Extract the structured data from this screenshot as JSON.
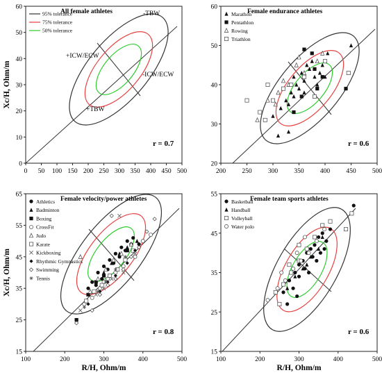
{
  "chart_data": [
    {
      "type": "scatter",
      "title": "All female athletes",
      "xlim": [
        0,
        500
      ],
      "ylim": [
        0,
        60
      ],
      "xticks": [
        "0",
        "50",
        "100",
        "150",
        "200",
        "250",
        "300",
        "350",
        "400",
        "450",
        "500"
      ],
      "yticks": [
        "0",
        "10",
        "20",
        "30",
        "40",
        "50",
        "60"
      ],
      "ylabel": "Xc/H, Ohm/m",
      "xlabel": "",
      "r_text": "r = 0.7",
      "ellipse_center": [
        305,
        39
      ],
      "legend": [
        {
          "label": "95% tolerance",
          "color": "#333333"
        },
        {
          "label": "75% tolerance",
          "color": "#e84040"
        },
        {
          "label": "50% tolerance",
          "color": "#2ecc2e"
        }
      ],
      "vector_labels": [
        "-TBW",
        "+ICW/ECW",
        "-ICW/ECW",
        "+TBW"
      ],
      "series": []
    },
    {
      "type": "scatter",
      "title": "Female endurance athletes",
      "xlim": [
        200,
        500
      ],
      "ylim": [
        20,
        60
      ],
      "xticks": [
        "200",
        "250",
        "300",
        "350",
        "400",
        "450",
        "500"
      ],
      "yticks": [
        "20",
        "30",
        "40",
        "50",
        "60"
      ],
      "xlabel": "",
      "ylabel": "",
      "r_text": "r = 0.6",
      "ellipse_center": [
        350,
        40
      ],
      "series": [
        {
          "name": "Marathon",
          "marker": "triangle-filled",
          "points": [
            [
              300,
              32
            ],
            [
              310,
              27
            ],
            [
              325,
              36
            ],
            [
              330,
              35
            ],
            [
              335,
              38
            ],
            [
              340,
              37
            ],
            [
              345,
              40
            ],
            [
              350,
              39
            ],
            [
              355,
              43
            ],
            [
              360,
              41
            ],
            [
              365,
              45
            ],
            [
              370,
              44
            ],
            [
              375,
              46
            ],
            [
              380,
              42
            ],
            [
              385,
              40
            ],
            [
              390,
              43
            ],
            [
              395,
              45
            ],
            [
              400,
              42
            ],
            [
              405,
              48
            ],
            [
              450,
              50
            ],
            [
              340,
              42
            ],
            [
              315,
              34
            ],
            [
              360,
              38
            ],
            [
              330,
              28
            ]
          ]
        },
        {
          "name": "Pentathlon",
          "marker": "square-filled",
          "points": [
            [
              360,
              49
            ],
            [
              375,
              48
            ],
            [
              380,
              44
            ],
            [
              395,
              42
            ],
            [
              440,
              39
            ],
            [
              340,
              33
            ],
            [
              355,
              37
            ],
            [
              385,
              39
            ]
          ]
        },
        {
          "name": "Rowing",
          "marker": "triangle-open",
          "points": [
            [
              270,
              31
            ],
            [
              290,
              36
            ],
            [
              310,
              38
            ],
            [
              320,
              41
            ],
            [
              330,
              40
            ],
            [
              345,
              45
            ],
            [
              350,
              47
            ],
            [
              360,
              43
            ],
            [
              385,
              46
            ],
            [
              395,
              48
            ],
            [
              305,
              35
            ]
          ]
        },
        {
          "name": "Triathlon",
          "marker": "square-open",
          "points": [
            [
              250,
              36
            ],
            [
              275,
              33
            ],
            [
              285,
              31
            ],
            [
              300,
              36
            ],
            [
              320,
              39
            ],
            [
              335,
              40
            ],
            [
              360,
              42
            ],
            [
              380,
              37
            ],
            [
              400,
              46
            ],
            [
              445,
              43
            ],
            [
              290,
              40
            ]
          ]
        }
      ]
    },
    {
      "type": "scatter",
      "title": "Female velocity/power athletes",
      "xlim": [
        100,
        500
      ],
      "ylim": [
        15,
        65
      ],
      "xticks": [
        "100",
        "200",
        "300",
        "400",
        "500"
      ],
      "yticks": [
        "15",
        "25",
        "35",
        "45",
        "55",
        "65"
      ],
      "xlabel": "R/H, Ohm/m",
      "ylabel": "Xc/H, Ohm/m",
      "r_text": "r = 0.8",
      "ellipse_center": [
        315,
        39
      ],
      "series": [
        {
          "name": "Athletics",
          "marker": "circle-filled",
          "points": [
            [
              260,
              35
            ],
            [
              270,
              37
            ],
            [
              285,
              40
            ],
            [
              300,
              42
            ],
            [
              315,
              44
            ],
            [
              330,
              46
            ],
            [
              345,
              48
            ],
            [
              360,
              50
            ],
            [
              375,
              51
            ],
            [
              390,
              49
            ],
            [
              340,
              45
            ],
            [
              310,
              41
            ],
            [
              295,
              38
            ],
            [
              325,
              43
            ],
            [
              355,
              47
            ],
            [
              370,
              49
            ],
            [
              280,
              36
            ]
          ]
        },
        {
          "name": "Badminton",
          "marker": "triangle-filled",
          "points": [
            [
              300,
              40
            ],
            [
              320,
              43
            ],
            [
              340,
              46
            ],
            [
              360,
              48
            ],
            [
              385,
              50
            ]
          ]
        },
        {
          "name": "Boxing",
          "marker": "square-filled",
          "points": [
            [
              230,
              25
            ],
            [
              260,
              33
            ],
            [
              280,
              37
            ],
            [
              300,
              39
            ],
            [
              360,
              47
            ]
          ]
        },
        {
          "name": "CrossFit",
          "marker": "circle-open",
          "points": [
            [
              270,
              32
            ],
            [
              290,
              35
            ],
            [
              310,
              38
            ],
            [
              330,
              40
            ],
            [
              350,
              42
            ],
            [
              380,
              45
            ],
            [
              400,
              50
            ],
            [
              420,
              52
            ],
            [
              250,
              30
            ],
            [
              300,
              37
            ]
          ]
        },
        {
          "name": "Judo",
          "marker": "triangle-open",
          "points": [
            [
              265,
              34
            ],
            [
              285,
              38
            ],
            [
              305,
              41
            ],
            [
              325,
              44
            ],
            [
              345,
              46
            ],
            [
              370,
              49
            ],
            [
              240,
              45
            ]
          ]
        },
        {
          "name": "Karate",
          "marker": "square-open",
          "points": [
            [
              255,
              31
            ],
            [
              275,
              34
            ],
            [
              295,
              36
            ],
            [
              315,
              39
            ],
            [
              335,
              41
            ],
            [
              355,
              44
            ],
            [
              375,
              47
            ]
          ]
        },
        {
          "name": "Kickboxing",
          "marker": "x",
          "points": [
            [
              240,
              28
            ],
            [
              280,
              33
            ],
            [
              300,
              35
            ],
            [
              320,
              38
            ],
            [
              350,
              40
            ],
            [
              380,
              46
            ],
            [
              340,
              58
            ]
          ]
        },
        {
          "name": "Rhythmic Gymnastics",
          "marker": "diamond-filled",
          "points": [
            [
              260,
              30
            ],
            [
              290,
              34
            ],
            [
              310,
              37
            ],
            [
              330,
              39
            ],
            [
              360,
              43
            ],
            [
              380,
              47
            ]
          ]
        },
        {
          "name": "Swimming",
          "marker": "diamond-open",
          "points": [
            [
              270,
              28
            ],
            [
              290,
              33
            ],
            [
              310,
              36
            ],
            [
              330,
              38
            ],
            [
              350,
              41
            ],
            [
              370,
              45
            ],
            [
              390,
              48
            ],
            [
              410,
              53
            ],
            [
              430,
              57
            ],
            [
              230,
              24
            ],
            [
              320,
              58
            ]
          ]
        },
        {
          "name": "Tennis",
          "marker": "star",
          "points": [
            [
              250,
              29
            ],
            [
              285,
              34
            ],
            [
              305,
              37
            ],
            [
              330,
              41
            ],
            [
              355,
              45
            ]
          ]
        }
      ]
    },
    {
      "type": "scatter",
      "title": "Female team sports athletes",
      "xlim": [
        100,
        500
      ],
      "ylim": [
        15,
        55
      ],
      "xticks": [
        "100",
        "200",
        "300",
        "400",
        "500"
      ],
      "yticks": [
        "15",
        "25",
        "35",
        "45",
        "55"
      ],
      "xlabel": "R/H, Ohm/m",
      "ylabel": "",
      "r_text": "r = 0.6",
      "ellipse_center": [
        300,
        37
      ],
      "series": [
        {
          "name": "Basketball",
          "marker": "circle-filled",
          "points": [
            [
              260,
              30
            ],
            [
              275,
              33
            ],
            [
              290,
              35
            ],
            [
              300,
              37
            ],
            [
              310,
              38
            ],
            [
              320,
              40
            ],
            [
              330,
              41
            ],
            [
              340,
              42
            ],
            [
              350,
              44
            ],
            [
              360,
              45
            ],
            [
              370,
              43
            ],
            [
              380,
              46
            ],
            [
              300,
              34
            ],
            [
              285,
              31
            ],
            [
              315,
              36
            ],
            [
              335,
              39
            ],
            [
              355,
              40
            ],
            [
              345,
              38
            ],
            [
              325,
              35
            ],
            [
              365,
              41
            ],
            [
              440,
              52
            ],
            [
              270,
              27
            ],
            [
              295,
              29
            ]
          ]
        },
        {
          "name": "Handball",
          "marker": "triangle-filled",
          "points": [
            [
              270,
              31
            ],
            [
              290,
              34
            ],
            [
              310,
              36
            ],
            [
              330,
              39
            ],
            [
              350,
              41
            ],
            [
              360,
              44
            ],
            [
              320,
              37
            ]
          ]
        },
        {
          "name": "Volleyball",
          "marker": "square-open",
          "points": [
            [
              240,
              30
            ],
            [
              260,
              32
            ],
            [
              280,
              35
            ],
            [
              300,
              38
            ],
            [
              320,
              41
            ],
            [
              340,
              44
            ],
            [
              360,
              47
            ],
            [
              380,
              48
            ],
            [
              420,
              46
            ],
            [
              435,
              50
            ],
            [
              250,
              27
            ],
            [
              300,
              42
            ],
            [
              275,
              37
            ]
          ]
        },
        {
          "name": "Water polo",
          "marker": "circle-open",
          "points": [
            [
              220,
              28
            ],
            [
              245,
              31
            ],
            [
              265,
              33
            ],
            [
              285,
              36
            ],
            [
              305,
              38
            ],
            [
              325,
              40
            ],
            [
              345,
              43
            ],
            [
              365,
              46
            ],
            [
              255,
              35
            ],
            [
              295,
              40
            ],
            [
              315,
              44
            ]
          ]
        }
      ]
    }
  ]
}
